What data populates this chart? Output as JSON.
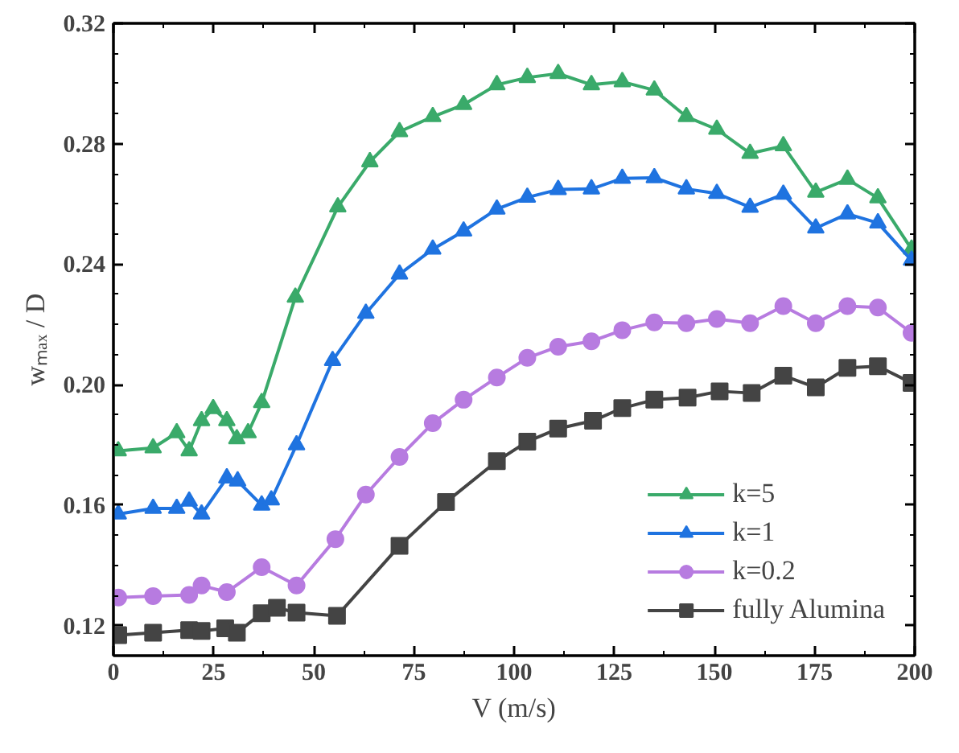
{
  "chart_data": {
    "type": "line",
    "xlabel": "V (m/s)",
    "ylabel": "wₘₐₓ / D",
    "xlim": [
      0,
      200
    ],
    "ylim": [
      0.11,
      0.32
    ],
    "xticks": [
      0,
      25,
      50,
      75,
      100,
      125,
      150,
      175,
      200
    ],
    "yticks": [
      {
        "value": 0.12,
        "label": "0.12"
      },
      {
        "value": 0.16,
        "label": "0.16"
      },
      {
        "value": 0.2,
        "label": "0.20"
      },
      {
        "value": 0.24,
        "label": "0.24"
      },
      {
        "value": 0.28,
        "label": "0.28"
      },
      {
        "value": 0.32,
        "label": "0.32"
      }
    ],
    "grid": false,
    "legend": "bottom right",
    "line_style": "solid",
    "series": [
      {
        "name": "k=5",
        "color": "#3aaa6a",
        "marker": "triangle",
        "x": [
          1.2,
          9.9,
          15.8,
          18.9,
          22,
          24.9,
          28.3,
          30.8,
          33.6,
          37,
          45.4,
          56,
          64,
          71.4,
          79.7,
          87.4,
          95.7,
          103.3,
          111,
          119.3,
          127,
          135,
          143,
          150.6,
          158.9,
          167.2,
          175.3,
          183.2,
          190.8,
          199.2
        ],
        "values": [
          0.178,
          0.179,
          0.184,
          0.178,
          0.188,
          0.192,
          0.188,
          0.182,
          0.184,
          0.194,
          0.229,
          0.259,
          0.274,
          0.284,
          0.289,
          0.293,
          0.2996,
          0.302,
          0.3033,
          0.2996,
          0.3006,
          0.2978,
          0.289,
          0.2848,
          0.2768,
          0.2793,
          0.2639,
          0.2682,
          0.262,
          0.245
        ]
      },
      {
        "name": "k=1",
        "color": "#1f73e0",
        "marker": "triangle",
        "x": [
          1.2,
          9.9,
          15.8,
          18.9,
          22,
          28.3,
          31,
          37,
          39.4,
          45.7,
          54.7,
          63,
          71.4,
          79.7,
          87.4,
          95.7,
          103.3,
          111,
          119.3,
          127,
          135,
          143,
          150.6,
          158.9,
          167.2,
          175.3,
          183.2,
          190.8,
          199.2
        ],
        "values": [
          0.157,
          0.1589,
          0.1589,
          0.1613,
          0.157,
          0.169,
          0.168,
          0.16,
          0.1617,
          0.18,
          0.208,
          0.2237,
          0.2367,
          0.245,
          0.251,
          0.2583,
          0.2622,
          0.2648,
          0.265,
          0.2685,
          0.2687,
          0.265,
          0.2635,
          0.2589,
          0.2632,
          0.252,
          0.2567,
          0.2537,
          0.2413
        ]
      },
      {
        "name": "k=0.2",
        "color": "#b77be0",
        "marker": "circle",
        "x": [
          1.2,
          9.9,
          18.9,
          22,
          28.3,
          37,
          45.7,
          55.4,
          63,
          71.4,
          79.7,
          87.4,
          95.7,
          103.3,
          111,
          119.3,
          127,
          135,
          143,
          150.6,
          158.9,
          167.2,
          175.3,
          183.2,
          190.8,
          199.2
        ],
        "values": [
          0.1293,
          0.1298,
          0.1302,
          0.1333,
          0.1311,
          0.1394,
          0.1333,
          0.1487,
          0.1635,
          0.176,
          0.1872,
          0.195,
          0.2024,
          0.2089,
          0.2126,
          0.2144,
          0.2181,
          0.2207,
          0.2204,
          0.2218,
          0.2204,
          0.2261,
          0.2204,
          0.2261,
          0.2256,
          0.2172
        ]
      },
      {
        "name": "fully Alumina",
        "color": "#444444",
        "marker": "square",
        "x": [
          1.2,
          9.9,
          18.9,
          22,
          27.9,
          30.8,
          37,
          40.8,
          45.7,
          55.8,
          71.4,
          83,
          95.7,
          103.3,
          111,
          119.7,
          127,
          135,
          143.3,
          151.3,
          159.3,
          167.2,
          175.3,
          183.2,
          190.8,
          199.2
        ],
        "values": [
          0.1168,
          0.1176,
          0.1185,
          0.1182,
          0.1191,
          0.1176,
          0.1241,
          0.1259,
          0.1243,
          0.1232,
          0.1465,
          0.161,
          0.1746,
          0.1811,
          0.1854,
          0.188,
          0.1922,
          0.195,
          0.1957,
          0.1978,
          0.1972,
          0.203,
          0.1991,
          0.2056,
          0.2061,
          0.2006
        ]
      }
    ]
  }
}
